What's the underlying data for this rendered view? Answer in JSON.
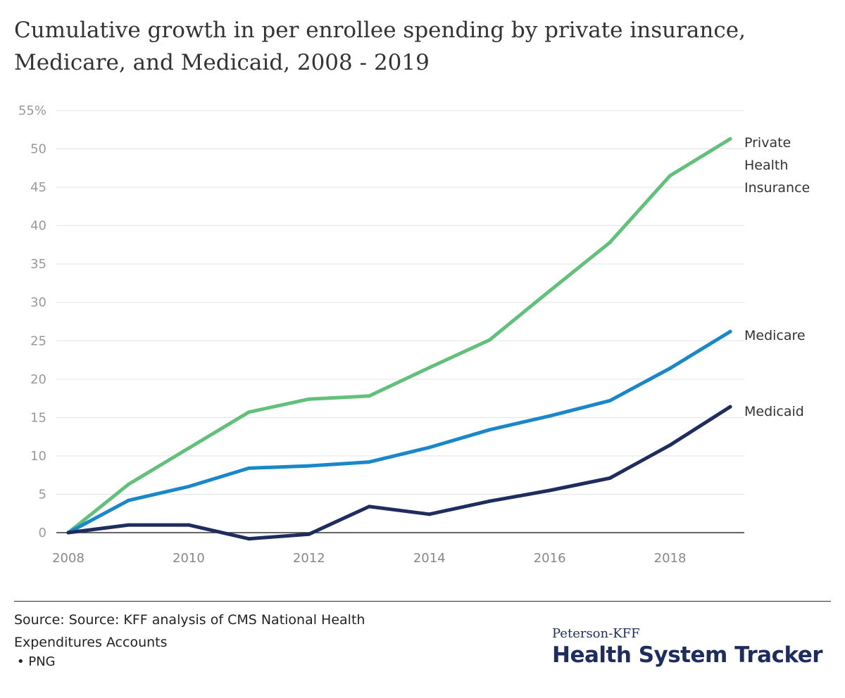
{
  "title_lines": [
    "Cumulative growth in per enrollee spending by private insurance,",
    "Medicare, and Medicaid, 2008 - 2019"
  ],
  "chart_data": {
    "type": "line",
    "title": "Cumulative growth in per enrollee spending by private insurance, Medicare, and Medicaid, 2008 - 2019",
    "x": [
      2008,
      2009,
      2010,
      2011,
      2012,
      2013,
      2014,
      2015,
      2016,
      2017,
      2018,
      2019
    ],
    "x_ticks": [
      "2008",
      "2010",
      "2012",
      "2014",
      "2016",
      "2018"
    ],
    "y_ticks": [
      "0",
      "5",
      "10",
      "15",
      "20",
      "25",
      "30",
      "35",
      "40",
      "45",
      "50",
      "55%"
    ],
    "ylim": [
      0,
      55
    ],
    "xlim": [
      2008,
      2019
    ],
    "grid": true,
    "legend": "inline-right",
    "series": [
      {
        "name": "Private Health Insurance",
        "label_lines": [
          "Private",
          "Health",
          "Insurance"
        ],
        "color": "#62c07a",
        "values": [
          0,
          6.3,
          11.0,
          15.7,
          17.4,
          17.8,
          21.5,
          25.1,
          31.5,
          37.8,
          46.5,
          51.3
        ]
      },
      {
        "name": "Medicare",
        "label_lines": [
          "Medicare"
        ],
        "color": "#1a87c8",
        "values": [
          0,
          4.2,
          6.0,
          8.4,
          8.7,
          9.2,
          11.1,
          13.4,
          15.2,
          17.2,
          21.4,
          26.2
        ]
      },
      {
        "name": "Medicaid",
        "label_lines": [
          "Medicaid"
        ],
        "color": "#1e2d5e",
        "values": [
          0,
          1.0,
          1.0,
          -0.8,
          -0.2,
          3.4,
          2.4,
          4.1,
          5.5,
          7.1,
          11.4,
          16.4
        ]
      }
    ]
  },
  "footer": {
    "source_lines": [
      "Source: Source: KFF analysis of CMS National Health",
      "Expenditures Accounts"
    ],
    "png_link": "• PNG",
    "logo_small": "Peterson-KFF",
    "logo_big": "Health System Tracker"
  },
  "colors": {
    "brand": "#1e2d5e",
    "grid": "#e3e3e3",
    "axis": "#333333"
  }
}
